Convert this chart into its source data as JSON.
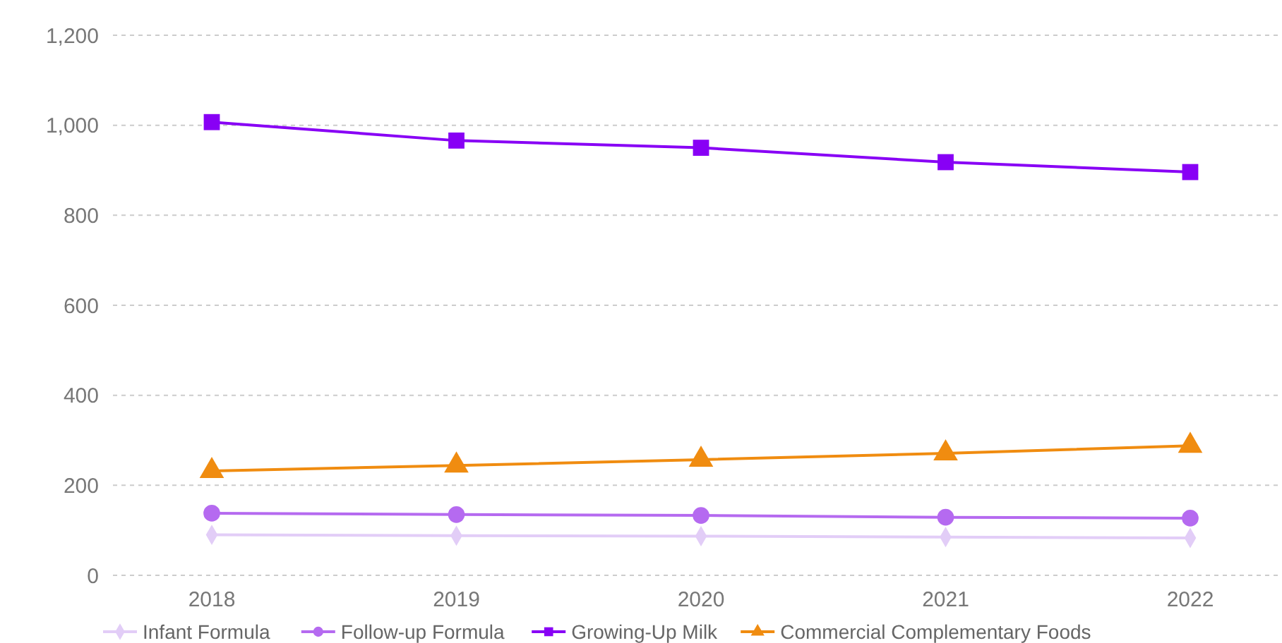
{
  "chart_data": {
    "type": "line",
    "categories": [
      "2018",
      "2019",
      "2020",
      "2021",
      "2022"
    ],
    "series": [
      {
        "name": "Infant Formula",
        "color": "#e2cdf7",
        "marker": "diamond",
        "values": [
          90,
          88,
          87,
          85,
          83
        ]
      },
      {
        "name": "Follow-up Formula",
        "color": "#b56af0",
        "marker": "circle",
        "values": [
          138,
          135,
          133,
          129,
          127
        ]
      },
      {
        "name": "Growing-Up Milk",
        "color": "#8800f5",
        "marker": "square",
        "values": [
          1007,
          966,
          950,
          918,
          896
        ]
      },
      {
        "name": "Commercial Complementary Foods",
        "color": "#f08c10",
        "marker": "triangle",
        "values": [
          232,
          244,
          257,
          271,
          288
        ]
      }
    ],
    "ylim": [
      0,
      1200
    ],
    "yticks": [
      0,
      {
        "value": 200,
        "label": "200"
      },
      400,
      600,
      800,
      {
        "value": 1000,
        "label": "1,000"
      },
      {
        "value": 1200,
        "label": "1,200"
      }
    ],
    "grid": "y",
    "legend": "bottom"
  }
}
